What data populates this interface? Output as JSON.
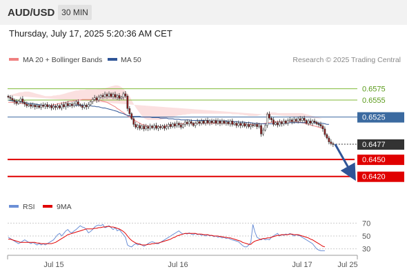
{
  "header": {
    "symbol": "AUD/USD",
    "timeframe": "30 MIN",
    "datetime": "Thursday, July 17, 2025 5:20:36 AM CET"
  },
  "legend": [
    {
      "name": "MA 20 + Bollinger Bands",
      "color": "#f08080"
    },
    {
      "name": "MA 50",
      "color": "#2f5597"
    }
  ],
  "credit": "Research © 2025 Trading Central",
  "rsi_legend": [
    {
      "name": "RSI",
      "color": "#6b8fd6"
    },
    {
      "name": "9MA",
      "color": "#e00000"
    }
  ],
  "colors": {
    "up": "#ffffff",
    "down": "#8b1a1a",
    "resistance": "#7fb935",
    "current": "#3b6aa0",
    "support": "#e00000",
    "last": "#333333",
    "forecast": "#2f5597"
  },
  "chart_data": [
    {
      "type": "candlestick",
      "ylim": [
        0.6405,
        0.6605
      ],
      "x_ticks": [
        "Jul 15",
        "Jul 16",
        "Jul 17",
        "Jul 25"
      ],
      "levels": [
        {
          "label": "0.6575",
          "value": 0.6575,
          "kind": "resistance"
        },
        {
          "label": "0.6555",
          "value": 0.6555,
          "kind": "resistance"
        },
        {
          "label": "0.6525",
          "value": 0.6525,
          "kind": "current"
        },
        {
          "label": "0.6477",
          "value": 0.6477,
          "kind": "last"
        },
        {
          "label": "0.6450",
          "value": 0.645,
          "kind": "support"
        },
        {
          "label": "0.6420",
          "value": 0.642,
          "kind": "support"
        }
      ],
      "close": [
        0.656,
        0.6558,
        0.6555,
        0.6552,
        0.6549,
        0.6553,
        0.6557,
        0.6551,
        0.6548,
        0.6545,
        0.6547,
        0.6544,
        0.6546,
        0.6543,
        0.6545,
        0.6542,
        0.6546,
        0.6544,
        0.6547,
        0.6543,
        0.6545,
        0.6541,
        0.6544,
        0.6542,
        0.6545,
        0.6541,
        0.6547,
        0.6543,
        0.6549,
        0.6545,
        0.6548,
        0.6545,
        0.6548,
        0.6552,
        0.6547,
        0.6545,
        0.6542,
        0.6546,
        0.6543,
        0.6547,
        0.6552,
        0.6556,
        0.6559,
        0.6555,
        0.656,
        0.6563,
        0.6561,
        0.6565,
        0.6562,
        0.6566,
        0.6561,
        0.6565,
        0.656,
        0.6563,
        0.6558,
        0.656,
        0.6566,
        0.6562,
        0.654,
        0.6531,
        0.6522,
        0.6512,
        0.6507,
        0.651,
        0.6505,
        0.6509,
        0.6504,
        0.6508,
        0.6505,
        0.6509,
        0.6506,
        0.651,
        0.6505,
        0.6508,
        0.6506,
        0.6509,
        0.6505,
        0.6508,
        0.6512,
        0.6508,
        0.6513,
        0.6509,
        0.6514,
        0.6511,
        0.6507,
        0.6512,
        0.6516,
        0.6513,
        0.6517,
        0.6514,
        0.651,
        0.6514,
        0.6517,
        0.6514,
        0.6518,
        0.6514,
        0.6519,
        0.6515,
        0.6518,
        0.6515,
        0.6519,
        0.6514,
        0.6518,
        0.6514,
        0.6518,
        0.6514,
        0.6516,
        0.6513,
        0.6518,
        0.6512,
        0.6514,
        0.651,
        0.6514,
        0.651,
        0.6514,
        0.6509,
        0.6512,
        0.6508,
        0.6511,
        0.651,
        0.6512,
        0.6508,
        0.651,
        0.6495,
        0.6502,
        0.651,
        0.653,
        0.6523,
        0.652,
        0.6512,
        0.6515,
        0.6511,
        0.6516,
        0.6513,
        0.6518,
        0.6514,
        0.6519,
        0.652,
        0.6517,
        0.6521,
        0.6518,
        0.6522,
        0.6519,
        0.6523,
        0.6519,
        0.6514,
        0.6518,
        0.6514,
        0.6518,
        0.6516,
        0.6513,
        0.6512,
        0.6509,
        0.6504,
        0.6494,
        0.6488,
        0.6481,
        0.6478,
        0.6477
      ],
      "ma50": [
        0.6555,
        0.6554,
        0.6554,
        0.6553,
        0.6553,
        0.6552,
        0.6552,
        0.6551,
        0.655,
        0.655,
        0.6549,
        0.6549,
        0.6548,
        0.6548,
        0.6547,
        0.6547,
        0.6546,
        0.6546,
        0.6546,
        0.6545,
        0.6545,
        0.6545,
        0.6544,
        0.6544,
        0.6544,
        0.6544,
        0.6544,
        0.6545,
        0.6545,
        0.6545,
        0.6545,
        0.6546,
        0.6546,
        0.6546,
        0.6546,
        0.6546,
        0.6546,
        0.6546,
        0.6545,
        0.6545,
        0.6545,
        0.6544,
        0.6544,
        0.6543,
        0.6543,
        0.6542,
        0.6541,
        0.6541,
        0.654,
        0.6539,
        0.6538,
        0.6537,
        0.6536,
        0.6535,
        0.6533,
        0.6532,
        0.6531,
        0.6529,
        0.6528,
        0.6527,
        0.6526,
        0.6526,
        0.6526,
        0.6526,
        0.6526,
        0.6525,
        0.6525,
        0.6525,
        0.6525,
        0.6525,
        0.6524,
        0.6524,
        0.6524,
        0.6524,
        0.6523,
        0.6523,
        0.6523,
        0.6523,
        0.6522,
        0.6522,
        0.6522,
        0.6521,
        0.6521,
        0.6521,
        0.652,
        0.652,
        0.652,
        0.652,
        0.652,
        0.6519,
        0.6519,
        0.6519,
        0.6519,
        0.6519,
        0.6519,
        0.6519,
        0.6519,
        0.6519,
        0.6518,
        0.6518,
        0.6518,
        0.6518,
        0.6518,
        0.6518,
        0.6518,
        0.6518,
        0.6518,
        0.6517,
        0.6517,
        0.6517,
        0.6517,
        0.6517,
        0.6516,
        0.6516,
        0.6516,
        0.6516,
        0.6515,
        0.6515,
        0.6515,
        0.6514,
        0.6514,
        0.6514,
        0.6513,
        0.6513,
        0.6513,
        0.6513,
        0.6513,
        0.6513,
        0.6513,
        0.6513,
        0.6513,
        0.6513,
        0.6513,
        0.6514,
        0.6514,
        0.6514,
        0.6514,
        0.6515,
        0.6515,
        0.6515,
        0.6515,
        0.6515,
        0.6515,
        0.6515,
        0.6515,
        0.6515,
        0.6515,
        0.6515,
        0.6515,
        0.6515,
        0.6515,
        0.6514,
        0.6514,
        0.6514,
        0.6513,
        0.6512,
        0.6512
      ],
      "ma20": [
        0.6551,
        0.6551,
        0.6551,
        0.655,
        0.655,
        0.655,
        0.6549,
        0.6549,
        0.6548,
        0.6547,
        0.6546,
        0.6545,
        0.6545,
        0.6544,
        0.6544,
        0.6544,
        0.6544,
        0.6544,
        0.6545,
        0.6545,
        0.6545,
        0.6546,
        0.6547,
        0.6547,
        0.6548,
        0.6549,
        0.655,
        0.655,
        0.6551,
        0.6552,
        0.6553,
        0.6553,
        0.6554,
        0.6554,
        0.6555,
        0.6555,
        0.6556,
        0.6556,
        0.6556,
        0.6556,
        0.6556,
        0.6556,
        0.6556,
        0.6555,
        0.6555,
        0.6554,
        0.6553,
        0.6552,
        0.6551,
        0.6549,
        0.6547,
        0.6545,
        0.6543,
        0.654,
        0.6538,
        0.6535,
        0.6533,
        0.653,
        0.6527,
        0.6525,
        0.6523,
        0.652,
        0.6518,
        0.6516,
        0.6514,
        0.6512,
        0.6511,
        0.651,
        0.6509,
        0.6508,
        0.6508,
        0.6508,
        0.6508,
        0.6508,
        0.6508,
        0.6509,
        0.6509,
        0.651,
        0.651,
        0.6511,
        0.6511,
        0.6512,
        0.6512,
        0.6513,
        0.6513,
        0.6513,
        0.6514,
        0.6514,
        0.6514,
        0.6514,
        0.6514,
        0.6514,
        0.6514,
        0.6514,
        0.6514,
        0.6514,
        0.6514,
        0.6514,
        0.6514,
        0.6514,
        0.6514,
        0.6514,
        0.6514,
        0.6514,
        0.6514,
        0.6514,
        0.6514,
        0.6514,
        0.6513,
        0.6513,
        0.6513,
        0.6513,
        0.6512,
        0.6512,
        0.6512,
        0.6512,
        0.6512,
        0.6512,
        0.6512,
        0.6512,
        0.6512,
        0.6512,
        0.6513,
        0.6513,
        0.6513,
        0.6514,
        0.6515,
        0.6515,
        0.6516,
        0.6516,
        0.6517,
        0.6517,
        0.6517,
        0.6517,
        0.6517,
        0.6517,
        0.6517,
        0.6517,
        0.6517,
        0.6517,
        0.6517,
        0.6516,
        0.6516,
        0.6515,
        0.6514,
        0.6513,
        0.6512,
        0.6511,
        0.651,
        0.6509,
        0.6508,
        0.6507,
        0.6506,
        0.6506
      ],
      "bb_upper": [
        0.6563,
        0.6564,
        0.6565,
        0.6566,
        0.6567,
        0.6568,
        0.6569,
        0.6569,
        0.657,
        0.657,
        0.657,
        0.6569,
        0.6568,
        0.6567,
        0.6566,
        0.6565,
        0.6564,
        0.6563,
        0.6562,
        0.6562,
        0.6562,
        0.6562,
        0.6563,
        0.6563,
        0.6564,
        0.6564,
        0.6565,
        0.6566,
        0.6567,
        0.6568,
        0.6569,
        0.657,
        0.6571,
        0.6572,
        0.6572,
        0.6573,
        0.6573,
        0.6573,
        0.6574,
        0.6574,
        0.6574,
        0.6574,
        0.6574,
        0.6574,
        0.6575,
        0.6575,
        0.6576,
        0.6576,
        0.6577,
        0.6578,
        0.6579,
        0.658,
        0.6581,
        0.6581,
        0.658,
        0.6578,
        0.6575,
        0.6571,
        0.6567,
        0.6562,
        0.6555,
        0.6548,
        0.6542,
        0.6537,
        0.6532,
        0.6527,
        0.6523,
        0.6521,
        0.652,
        0.652,
        0.652,
        0.652,
        0.652,
        0.652,
        0.652,
        0.6521,
        0.6522,
        0.6523,
        0.6524,
        0.6524,
        0.6525,
        0.6526,
        0.6527,
        0.6528,
        0.6528,
        0.6529,
        0.6529,
        0.653,
        0.653,
        0.6531,
        0.6531,
        0.6531,
        0.6531,
        0.6531,
        0.6531,
        0.6531,
        0.6531,
        0.6531,
        0.6531,
        0.6531,
        0.6531,
        0.6531,
        0.6531,
        0.6531,
        0.6531,
        0.6531,
        0.6531,
        0.6531,
        0.6531,
        0.653,
        0.653,
        0.653,
        0.653,
        0.6529,
        0.6529,
        0.6528,
        0.6528,
        0.6527,
        0.6527,
        0.6527,
        0.6527,
        0.6527,
        0.6528,
        0.6529,
        0.653,
        0.6531,
        0.6532,
        0.6533,
        0.6533,
        0.6533,
        0.6533,
        0.6532,
        0.6532,
        0.6532,
        0.6532,
        0.6532,
        0.6532,
        0.6532,
        0.6532,
        0.6532,
        0.6532,
        0.6532,
        0.6532,
        0.6532,
        0.6531,
        0.653,
        0.6529,
        0.6528,
        0.6527,
        0.6526,
        0.6525,
        0.6524,
        0.6523,
        0.6522
      ],
      "bb_lower": [
        0.6538,
        0.6538,
        0.6537,
        0.6537,
        0.6536,
        0.6535,
        0.6534,
        0.6533,
        0.6532,
        0.6531,
        0.653,
        0.6529,
        0.6528,
        0.6527,
        0.6527,
        0.6527,
        0.6527,
        0.6527,
        0.6527,
        0.6528,
        0.6529,
        0.653,
        0.653,
        0.6531,
        0.6532,
        0.6533,
        0.6534,
        0.6535,
        0.6535,
        0.6536,
        0.6537,
        0.6537,
        0.6537,
        0.6538,
        0.6538,
        0.6538,
        0.6538,
        0.6538,
        0.6538,
        0.6538,
        0.6538,
        0.6538,
        0.6538,
        0.6537,
        0.6537,
        0.6536,
        0.6535,
        0.6534,
        0.6532,
        0.653,
        0.6527,
        0.6523,
        0.6518,
        0.6512,
        0.6505,
        0.6498,
        0.6492,
        0.6488,
        0.6486,
        0.6485,
        0.6485,
        0.6486,
        0.6487,
        0.6489,
        0.6491,
        0.6493,
        0.6495,
        0.6497,
        0.6498,
        0.6499,
        0.6499,
        0.65,
        0.65,
        0.65,
        0.65,
        0.65,
        0.65,
        0.65,
        0.65,
        0.65,
        0.65,
        0.65,
        0.65,
        0.65,
        0.65,
        0.65,
        0.65,
        0.65,
        0.65,
        0.65,
        0.65,
        0.65,
        0.65,
        0.65,
        0.65,
        0.65,
        0.65,
        0.65,
        0.65,
        0.65,
        0.65,
        0.65,
        0.65,
        0.65,
        0.65,
        0.65,
        0.65,
        0.65,
        0.65,
        0.65,
        0.65,
        0.65,
        0.65,
        0.65,
        0.65,
        0.6499,
        0.6499,
        0.6498,
        0.6498,
        0.6497,
        0.6496,
        0.6496,
        0.6496,
        0.6496,
        0.6497,
        0.6498,
        0.6499,
        0.65,
        0.6501,
        0.6502,
        0.6502,
        0.6502,
        0.6502,
        0.6502,
        0.6502,
        0.6502,
        0.6502,
        0.6502,
        0.6502,
        0.6502,
        0.6502,
        0.6502,
        0.6502,
        0.6502,
        0.6502,
        0.6502,
        0.6502,
        0.6502,
        0.6502,
        0.6502,
        0.6502,
        0.6502,
        0.6502,
        0.6502,
        0.6502,
        0.6502
      ]
    },
    {
      "type": "line",
      "ylim": [
        22,
        78
      ],
      "y_ticks": [
        {
          "label": "70",
          "value": 70
        },
        {
          "label": "50",
          "value": 50
        },
        {
          "label": "30",
          "value": 30
        }
      ],
      "series": [
        {
          "name": "RSI",
          "values": [
            48,
            46,
            44,
            42,
            40,
            38,
            40,
            42,
            44,
            42,
            40,
            38,
            40,
            38,
            36,
            38,
            36,
            38,
            36,
            38,
            40,
            42,
            44,
            48,
            52,
            54,
            50,
            54,
            58,
            60,
            56,
            55,
            58,
            60,
            63,
            66,
            64,
            63,
            60,
            55,
            57,
            60,
            64,
            66,
            67,
            66,
            68,
            63,
            64,
            66,
            63,
            60,
            63,
            58,
            60,
            56,
            52,
            48,
            36,
            34,
            33,
            36,
            38,
            36,
            38,
            36,
            34,
            36,
            38,
            40,
            41,
            40,
            38,
            38,
            40,
            42,
            44,
            46,
            48,
            50,
            52,
            54,
            56,
            58,
            55,
            53,
            54,
            53,
            55,
            53,
            52,
            54,
            52,
            53,
            51,
            52,
            50,
            52,
            50,
            51,
            49,
            50,
            48,
            49,
            47,
            48,
            46,
            47,
            45,
            44,
            43,
            42,
            41,
            38,
            35,
            33,
            33,
            36,
            40,
            68,
            56,
            48,
            46,
            44,
            46,
            44,
            45,
            44,
            48,
            50,
            52,
            54,
            50,
            52,
            51,
            53,
            52,
            54,
            52,
            50,
            52,
            51,
            50,
            48,
            46,
            44,
            42,
            40,
            38,
            34,
            30,
            28,
            27,
            27,
            27
          ]
        },
        {
          "name": "9MA",
          "values": [
            45,
            45,
            44,
            43,
            42,
            41,
            40,
            40,
            40,
            40,
            40,
            40,
            40,
            40,
            39,
            39,
            38,
            38,
            38,
            38,
            38,
            38,
            39,
            40,
            42,
            44,
            46,
            48,
            50,
            52,
            53,
            54,
            55,
            56,
            57,
            58,
            59,
            60,
            61,
            61,
            61,
            61,
            62,
            62,
            63,
            63,
            64,
            64,
            65,
            65,
            64,
            64,
            63,
            62,
            61,
            59,
            57,
            54,
            50,
            46,
            43,
            41,
            39,
            38,
            37,
            36,
            36,
            36,
            37,
            37,
            38,
            38,
            39,
            39,
            40,
            41,
            42,
            43,
            44,
            45,
            47,
            48,
            50,
            51,
            52,
            53,
            54,
            54,
            54,
            54,
            54,
            54,
            53,
            53,
            53,
            52,
            52,
            52,
            51,
            51,
            50,
            50,
            50,
            49,
            49,
            48,
            48,
            47,
            47,
            46,
            45,
            44,
            43,
            42,
            40,
            39,
            38,
            37,
            37,
            40,
            42,
            43,
            44,
            45,
            46,
            46,
            47,
            47,
            48,
            49,
            50,
            51,
            51,
            52,
            52,
            52,
            52,
            53,
            53,
            52,
            52,
            52,
            51,
            50,
            49,
            48,
            47,
            45,
            44,
            42,
            40,
            38,
            36,
            34,
            33
          ]
        }
      ]
    }
  ]
}
